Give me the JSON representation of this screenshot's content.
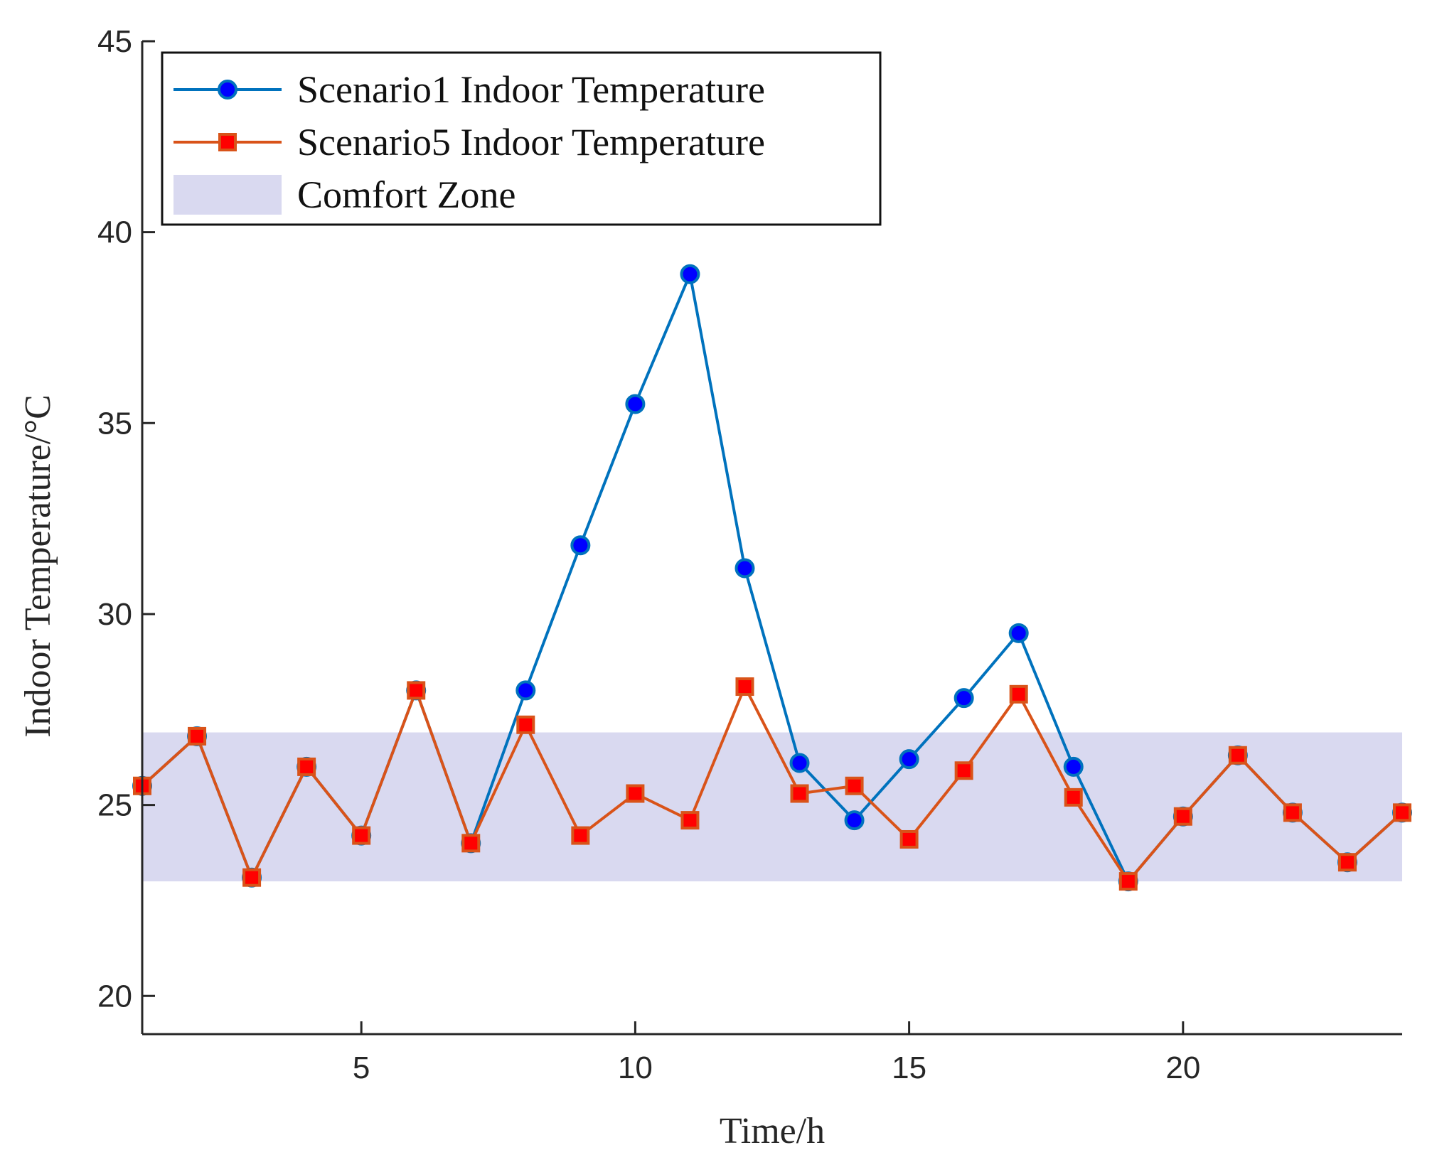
{
  "chart_data": {
    "type": "line",
    "title": "",
    "xlabel": "Time/h",
    "ylabel": "Indoor Temperature/°C",
    "xlim": [
      1,
      24
    ],
    "ylim": [
      19,
      45
    ],
    "xticks": [
      5,
      10,
      15,
      20
    ],
    "yticks": [
      20,
      25,
      30,
      35,
      40,
      45
    ],
    "x": [
      1,
      2,
      3,
      4,
      5,
      6,
      7,
      8,
      9,
      10,
      11,
      12,
      13,
      14,
      15,
      16,
      17,
      18,
      19,
      20,
      21,
      22,
      23,
      24
    ],
    "series": [
      {
        "name": "Scenario1 Indoor Temperature",
        "color": "#0072BD",
        "marker": "circle",
        "marker_fill": "#0000FF",
        "values": [
          25.5,
          26.8,
          23.1,
          26.0,
          24.2,
          28.0,
          24.0,
          28.0,
          31.8,
          35.5,
          38.9,
          31.2,
          26.1,
          24.6,
          26.2,
          27.8,
          29.5,
          26.0,
          23.0,
          24.7,
          26.3,
          24.8,
          23.5,
          24.8
        ]
      },
      {
        "name": "Scenario5 Indoor Temperature",
        "color": "#D95319",
        "marker": "square",
        "marker_fill": "#FF0000",
        "values": [
          25.5,
          26.8,
          23.1,
          26.0,
          24.2,
          28.0,
          24.0,
          27.1,
          24.2,
          25.3,
          24.6,
          28.1,
          25.3,
          25.5,
          24.1,
          25.9,
          27.9,
          25.2,
          23.0,
          24.7,
          26.3,
          24.8,
          23.5,
          24.8
        ]
      }
    ],
    "bands": [
      {
        "name": "Comfort Zone",
        "y_range": [
          23.0,
          26.9
        ],
        "color": "#D9D9F0"
      }
    ],
    "legend": {
      "position": "top-left",
      "entries": [
        "Scenario1 Indoor Temperature",
        "Scenario5 Indoor Temperature",
        "Comfort Zone"
      ]
    },
    "grid": false
  }
}
